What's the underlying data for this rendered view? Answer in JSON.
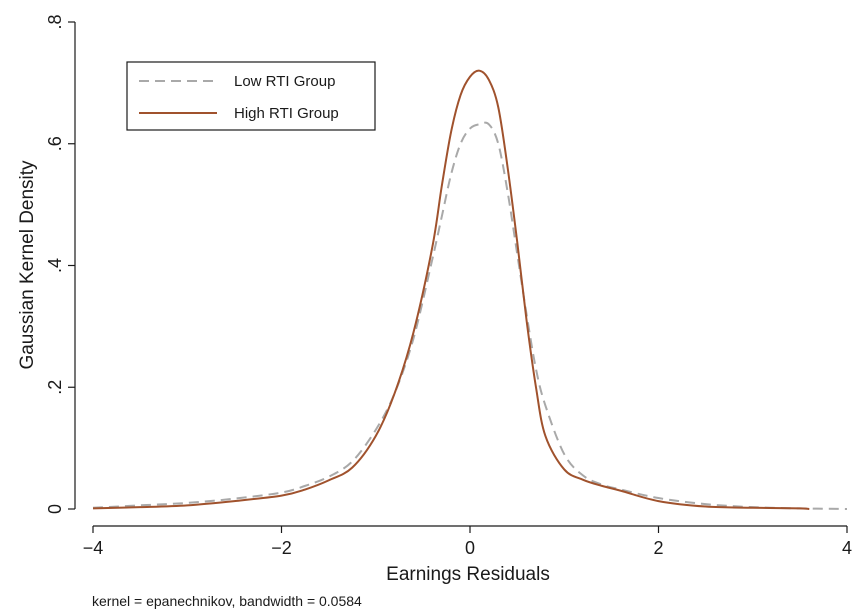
{
  "chart_data": {
    "type": "line",
    "title": "",
    "xlabel": "Earnings Residuals",
    "ylabel": "Gaussian Kernel Density",
    "note": "kernel = epanechnikov, bandwidth = 0.0584",
    "xlim": [
      -4,
      4
    ],
    "ylim": [
      0,
      0.8
    ],
    "x_ticks": [
      -4,
      -2,
      0,
      2,
      4
    ],
    "x_tick_labels": [
      "−4",
      "−2",
      "0",
      "2",
      "4"
    ],
    "y_ticks": [
      0,
      0.2,
      0.4,
      0.6,
      0.8
    ],
    "y_tick_labels": [
      "0",
      ".2",
      ".4",
      ".6",
      ".8"
    ],
    "grid": false,
    "legend_position": "top-left",
    "series": [
      {
        "name": "Low RTI Group",
        "color": "#a9a9a9",
        "style": "dashed",
        "x": [
          -4.0,
          -3.5,
          -3.0,
          -2.5,
          -2.0,
          -1.75,
          -1.5,
          -1.25,
          -1.0,
          -0.8,
          -0.6,
          -0.4,
          -0.3,
          -0.2,
          -0.1,
          0.0,
          0.1,
          0.2,
          0.3,
          0.4,
          0.5,
          0.6,
          0.7,
          0.8,
          1.0,
          1.2,
          1.4,
          1.6,
          2.0,
          2.5,
          3.0,
          3.5,
          4.0
        ],
        "y": [
          0.002,
          0.006,
          0.01,
          0.017,
          0.027,
          0.038,
          0.053,
          0.078,
          0.13,
          0.19,
          0.28,
          0.41,
          0.48,
          0.55,
          0.6,
          0.625,
          0.632,
          0.632,
          0.6,
          0.52,
          0.42,
          0.32,
          0.23,
          0.17,
          0.09,
          0.055,
          0.04,
          0.032,
          0.018,
          0.008,
          0.003,
          0.001,
          0.0
        ]
      },
      {
        "name": "High RTI Group",
        "color": "#a0522d",
        "style": "solid",
        "x": [
          -4.0,
          -3.5,
          -3.0,
          -2.5,
          -2.0,
          -1.75,
          -1.5,
          -1.25,
          -1.0,
          -0.8,
          -0.6,
          -0.4,
          -0.3,
          -0.2,
          -0.1,
          0.0,
          0.1,
          0.2,
          0.3,
          0.4,
          0.5,
          0.6,
          0.7,
          0.8,
          1.0,
          1.2,
          1.4,
          1.6,
          2.0,
          2.5,
          3.0,
          3.5,
          3.6
        ],
        "y": [
          0.001,
          0.003,
          0.006,
          0.013,
          0.022,
          0.032,
          0.047,
          0.068,
          0.12,
          0.19,
          0.29,
          0.43,
          0.53,
          0.62,
          0.68,
          0.71,
          0.72,
          0.705,
          0.66,
          0.56,
          0.44,
          0.31,
          0.2,
          0.12,
          0.065,
          0.048,
          0.038,
          0.03,
          0.013,
          0.004,
          0.002,
          0.001,
          0.0
        ]
      }
    ]
  }
}
